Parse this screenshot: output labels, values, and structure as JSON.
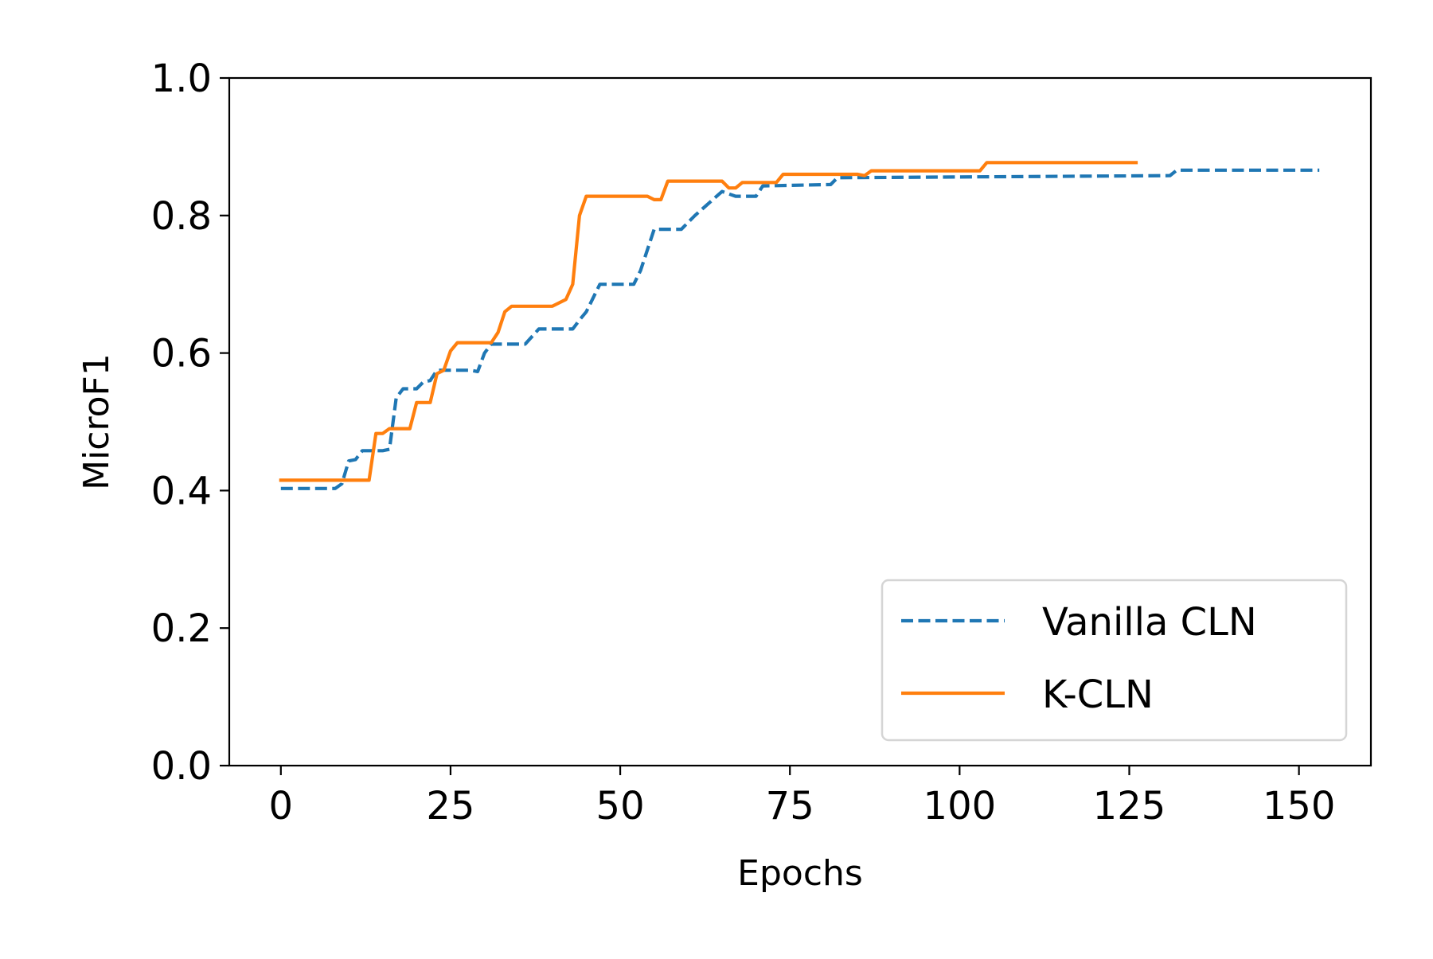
{
  "chart_data": {
    "type": "line",
    "title": "",
    "xlabel": "Epochs",
    "ylabel": "MicroF1",
    "xlim": [
      -7.6,
      160.6
    ],
    "ylim": [
      0.0,
      1.0
    ],
    "xticks": [
      0,
      25,
      50,
      75,
      100,
      125,
      150
    ],
    "xtick_labels": [
      "0",
      "25",
      "50",
      "75",
      "100",
      "125",
      "150"
    ],
    "yticks": [
      0.0,
      0.2,
      0.4,
      0.6,
      0.8,
      1.0
    ],
    "ytick_labels": [
      "0.0",
      "0.2",
      "0.4",
      "0.6",
      "0.8",
      "1.0"
    ],
    "grid": false,
    "legend": {
      "placement": "lower-right",
      "entries": [
        "Vanilla CLN",
        "K-CLN"
      ]
    },
    "series": [
      {
        "name": "Vanilla CLN",
        "color": "#1f77b4",
        "style": "dashed",
        "points": [
          [
            0,
            0.403
          ],
          [
            8,
            0.403
          ],
          [
            9,
            0.41
          ],
          [
            10,
            0.443
          ],
          [
            11,
            0.445
          ],
          [
            12,
            0.458
          ],
          [
            15,
            0.458
          ],
          [
            16,
            0.46
          ],
          [
            17,
            0.535
          ],
          [
            18,
            0.548
          ],
          [
            20,
            0.548
          ],
          [
            21,
            0.558
          ],
          [
            22,
            0.56
          ],
          [
            23,
            0.575
          ],
          [
            28,
            0.575
          ],
          [
            29,
            0.573
          ],
          [
            30,
            0.6
          ],
          [
            31,
            0.613
          ],
          [
            36,
            0.613
          ],
          [
            38,
            0.635
          ],
          [
            43,
            0.635
          ],
          [
            44,
            0.648
          ],
          [
            45,
            0.66
          ],
          [
            47,
            0.7
          ],
          [
            52,
            0.7
          ],
          [
            53,
            0.72
          ],
          [
            55,
            0.78
          ],
          [
            59,
            0.78
          ],
          [
            61,
            0.8
          ],
          [
            65,
            0.835
          ],
          [
            67,
            0.828
          ],
          [
            70,
            0.828
          ],
          [
            71,
            0.843
          ],
          [
            81,
            0.845
          ],
          [
            82,
            0.855
          ],
          [
            131,
            0.858
          ],
          [
            132,
            0.866
          ],
          [
            153,
            0.866
          ]
        ]
      },
      {
        "name": "K-CLN",
        "color": "#ff7f0e",
        "style": "solid",
        "points": [
          [
            0,
            0.415
          ],
          [
            13,
            0.415
          ],
          [
            14,
            0.483
          ],
          [
            15,
            0.483
          ],
          [
            16,
            0.49
          ],
          [
            19,
            0.49
          ],
          [
            20,
            0.528
          ],
          [
            22,
            0.528
          ],
          [
            23,
            0.57
          ],
          [
            24,
            0.575
          ],
          [
            25,
            0.603
          ],
          [
            26,
            0.615
          ],
          [
            31,
            0.615
          ],
          [
            32,
            0.63
          ],
          [
            33,
            0.66
          ],
          [
            34,
            0.668
          ],
          [
            40,
            0.668
          ],
          [
            42,
            0.678
          ],
          [
            43,
            0.7
          ],
          [
            44,
            0.8
          ],
          [
            45,
            0.828
          ],
          [
            54,
            0.828
          ],
          [
            55,
            0.823
          ],
          [
            56,
            0.823
          ],
          [
            57,
            0.85
          ],
          [
            65,
            0.85
          ],
          [
            66,
            0.84
          ],
          [
            67,
            0.84
          ],
          [
            68,
            0.848
          ],
          [
            73,
            0.848
          ],
          [
            74,
            0.86
          ],
          [
            85,
            0.86
          ],
          [
            86,
            0.858
          ],
          [
            87,
            0.865
          ],
          [
            103,
            0.865
          ],
          [
            104,
            0.877
          ],
          [
            126,
            0.877
          ]
        ]
      }
    ]
  }
}
